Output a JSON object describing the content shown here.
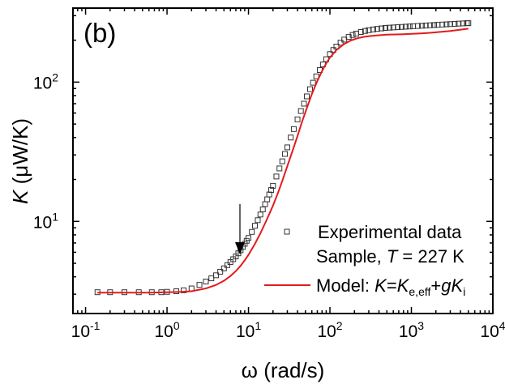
{
  "chart_data": {
    "type": "scatter",
    "panel_label": "(b)",
    "xlabel": "ω (rad/s)",
    "ylabel": {
      "symbol": "K",
      "unit": " (μW/K)"
    },
    "x_scale": "log",
    "y_scale": "log",
    "xlim": [
      0.07,
      10000
    ],
    "ylim": [
      2.18,
      340
    ],
    "x_ticks": [
      {
        "value": 0.1,
        "base": "10",
        "exp": "-1"
      },
      {
        "value": 1,
        "base": "10",
        "exp": "0"
      },
      {
        "value": 10,
        "base": "10",
        "exp": "1"
      },
      {
        "value": 100,
        "base": "10",
        "exp": "2"
      },
      {
        "value": 1000,
        "base": "10",
        "exp": "3"
      },
      {
        "value": 10000,
        "base": "10",
        "exp": "4"
      }
    ],
    "y_ticks": [
      {
        "value": 10,
        "base": "10",
        "exp": "1"
      },
      {
        "value": 100,
        "base": "10",
        "exp": "2"
      }
    ],
    "grid": false,
    "legend_position": "lower-right",
    "legend": {
      "line1": "Experimental data",
      "line2_prefix": "Sample, ",
      "line2_T": "T",
      "line2_suffix": " = 227 K",
      "model": {
        "prefix": "Model: ",
        "K": "K",
        "eq": "=",
        "Ke": "K",
        "Ke_sub": "e,eff",
        "plus": "+",
        "g": "g",
        "Ki": "K",
        "Ki_sub": "i"
      }
    },
    "annotation": {
      "type": "arrow",
      "x": 10,
      "y": 6.2,
      "direction": "down"
    },
    "series": [
      {
        "kind": "markers",
        "marker": "open-square",
        "color": "#333333",
        "x": [
          0.14,
          0.2,
          0.3,
          0.45,
          0.65,
          0.85,
          1.0,
          1.3,
          1.6,
          2.0,
          2.5,
          3.0,
          3.5,
          4.0,
          4.5,
          5.0,
          5.5,
          6.0,
          6.5,
          7.0,
          7.5,
          8.0,
          8.5,
          9.0,
          9.5,
          10,
          11,
          12,
          13,
          14,
          15,
          16,
          17,
          18,
          19,
          20,
          22,
          24,
          26,
          28,
          30,
          33,
          36,
          40,
          44,
          48,
          52,
          57,
          62,
          68,
          75,
          82,
          90,
          100,
          110,
          120,
          135,
          150,
          170,
          190,
          210,
          240,
          270,
          300,
          340,
          380,
          430,
          480,
          540,
          600,
          680,
          760,
          850,
          950,
          1050,
          1200,
          1350,
          1500,
          1700,
          1900,
          2100,
          2400,
          2700,
          3000,
          3400,
          3800,
          4300,
          4800,
          5000
        ],
        "y": [
          3.1,
          3.1,
          3.1,
          3.1,
          3.1,
          3.1,
          3.12,
          3.15,
          3.2,
          3.3,
          3.5,
          3.7,
          3.9,
          4.1,
          4.35,
          4.6,
          4.85,
          5.1,
          5.35,
          5.6,
          5.9,
          6.2,
          6.55,
          6.9,
          7.25,
          7.6,
          8.4,
          9.3,
          10.2,
          11.2,
          12.2,
          13.3,
          14.4,
          15.6,
          16.8,
          18,
          21,
          24,
          27,
          30.5,
          34,
          40,
          46,
          54,
          62,
          70,
          79,
          89,
          99,
          110,
          122,
          134,
          146,
          159,
          170,
          180,
          192,
          202,
          211,
          218,
          223,
          229,
          233,
          236,
          239,
          241,
          243,
          245,
          246,
          247,
          248,
          249,
          250,
          251,
          252,
          253,
          254,
          255,
          256,
          257,
          258,
          259,
          260,
          261,
          262,
          263,
          264,
          265,
          265
        ]
      },
      {
        "kind": "line",
        "name": "Model",
        "color": "#e41a1c",
        "x": [
          0.14,
          0.3,
          0.6,
          1.0,
          1.5,
          2.0,
          3.0,
          4.0,
          5.0,
          6.0,
          7.0,
          8.0,
          9.0,
          10,
          12,
          14,
          16,
          18,
          20,
          23,
          26,
          30,
          35,
          40,
          46,
          53,
          60,
          70,
          80,
          90,
          100,
          120,
          150,
          180,
          220,
          270,
          330,
          400,
          500,
          650,
          800,
          1000,
          1300,
          1700,
          2200,
          3000,
          4000,
          5000
        ],
        "y": [
          3.08,
          3.08,
          3.08,
          3.1,
          3.12,
          3.15,
          3.3,
          3.5,
          3.75,
          4.05,
          4.4,
          4.8,
          5.25,
          5.75,
          6.9,
          8.2,
          9.7,
          11.3,
          13,
          16,
          19.5,
          25,
          32.5,
          41,
          53,
          67,
          82,
          102,
          120,
          136,
          150,
          170,
          188,
          199,
          207,
          212,
          215,
          217,
          219,
          220,
          221,
          222,
          224,
          226,
          229,
          233,
          238,
          242
        ]
      }
    ]
  }
}
